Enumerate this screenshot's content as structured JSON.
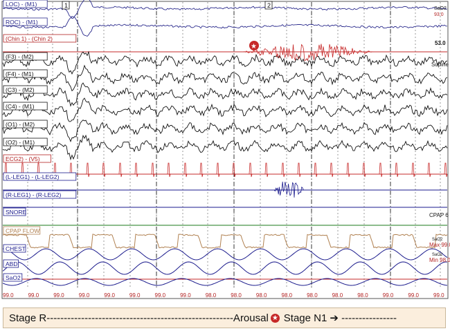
{
  "channels": [
    {
      "label": "LOC) - (M1)",
      "color": "#2a2a8c"
    },
    {
      "label": "ROC) - (M1)",
      "color": "#2a2a8c"
    },
    {
      "label": "(Chin 1) - (Chin 2)",
      "color": "#b22222"
    },
    {
      "label": "(F3) - (M2)",
      "color": "#111111"
    },
    {
      "label": "(F4) - (M1)",
      "color": "#111111"
    },
    {
      "label": "(C3) - (M2)",
      "color": "#111111"
    },
    {
      "label": "(C4) - (M1)",
      "color": "#111111"
    },
    {
      "label": "(O1) - (M2)",
      "color": "#111111"
    },
    {
      "label": "(O2) - (M1)",
      "color": "#111111"
    },
    {
      "label": "ECG2) - (V5)",
      "color": "#b22222"
    },
    {
      "label": "(L-LEG1) - (L-LEG2)",
      "color": "#1a1a8c"
    },
    {
      "label": "(R-LEG1) - (R-LEG2)",
      "color": "#1a1a8c"
    },
    {
      "label": "SNORE",
      "color": "#1a1a8c"
    },
    {
      "label": "CPAP FLOW",
      "color": "#b08050"
    },
    {
      "label": "CHEST",
      "color": "#1a1a8c"
    },
    {
      "label": "ABD",
      "color": "#1a1a8c"
    },
    {
      "label": "SaO2",
      "color": "#1a1a8c"
    }
  ],
  "markers": [
    "1",
    "2"
  ],
  "right_labels": {
    "sao2_top": "SaO2",
    "sao2_top_value": "93.0",
    "sao2_top_value2": "53.0",
    "supine": "Supine",
    "cpap": "CPAP 6",
    "sao2_mid": "SaO2",
    "max": "Max 99.0",
    "sao2_min": "SaO2",
    "min": "Min 98.0"
  },
  "sao2_values": [
    "99.0",
    "99.0",
    "99.0",
    "99.0",
    "99.0",
    "99.0",
    "99.0",
    "99.0",
    "98.0",
    "98.0",
    "98.0",
    "98.0",
    "98.0",
    "98.0",
    "98.0",
    "99.0",
    "99.0",
    "99.0"
  ],
  "footer": {
    "stage_r": "Stage R------------------------------------------------------Arousal",
    "stage_n1": "Stage N1",
    "arrow": "➔",
    "dashes": " ----------------"
  },
  "colors": {
    "grid": "#333333",
    "red_line": "#c62828",
    "footer_bg": "#fbeedd",
    "sao2_text": "#b22222"
  }
}
